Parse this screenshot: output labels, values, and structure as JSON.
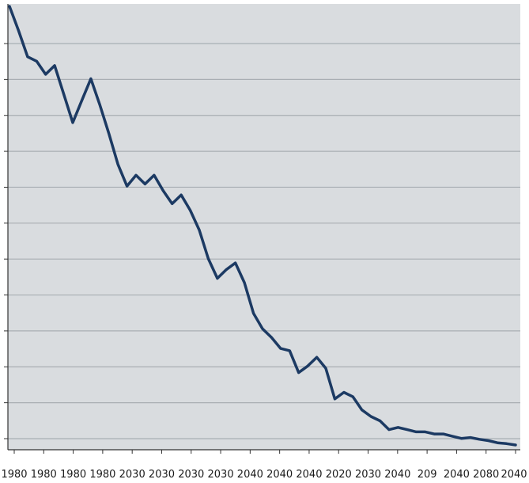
{
  "chart_data": {
    "type": "line",
    "title": "",
    "xlabel": "",
    "ylabel": "",
    "x_tick_labels": [
      "1980",
      "1980",
      "1980",
      "1980",
      "2030",
      "2030",
      "2030",
      "2030",
      "2040",
      "2040",
      "2040",
      "2020",
      "2030",
      "2040",
      "209",
      "2040",
      "2080",
      "2040"
    ],
    "y_tick_count": 12,
    "grid": "horizontal",
    "legend": "none",
    "colors": {
      "line": "#1c3a63",
      "plot_background": "#d9dcdf",
      "grid": "#a9aeb3",
      "axis": "#333333"
    },
    "ylim": [
      0,
      100
    ],
    "series": [
      {
        "values": [
          100,
          94.5,
          88.5,
          87.5,
          84.5,
          86.5,
          80,
          73.5,
          78.5,
          83.5,
          77.5,
          71,
          64,
          59,
          61.5,
          59.5,
          61.5,
          58,
          55,
          57,
          53.5,
          49,
          42.5,
          38,
          40,
          41.5,
          37,
          30,
          26.5,
          24.5,
          22,
          21.5,
          16.5,
          18,
          20,
          17.5,
          10.5,
          12,
          11,
          8,
          6.5,
          5.5,
          3.5,
          4,
          3.5,
          3,
          3,
          2.5,
          2.5,
          2,
          1.5,
          1.7,
          1.3,
          1,
          0.5,
          0.3,
          0
        ]
      }
    ]
  }
}
